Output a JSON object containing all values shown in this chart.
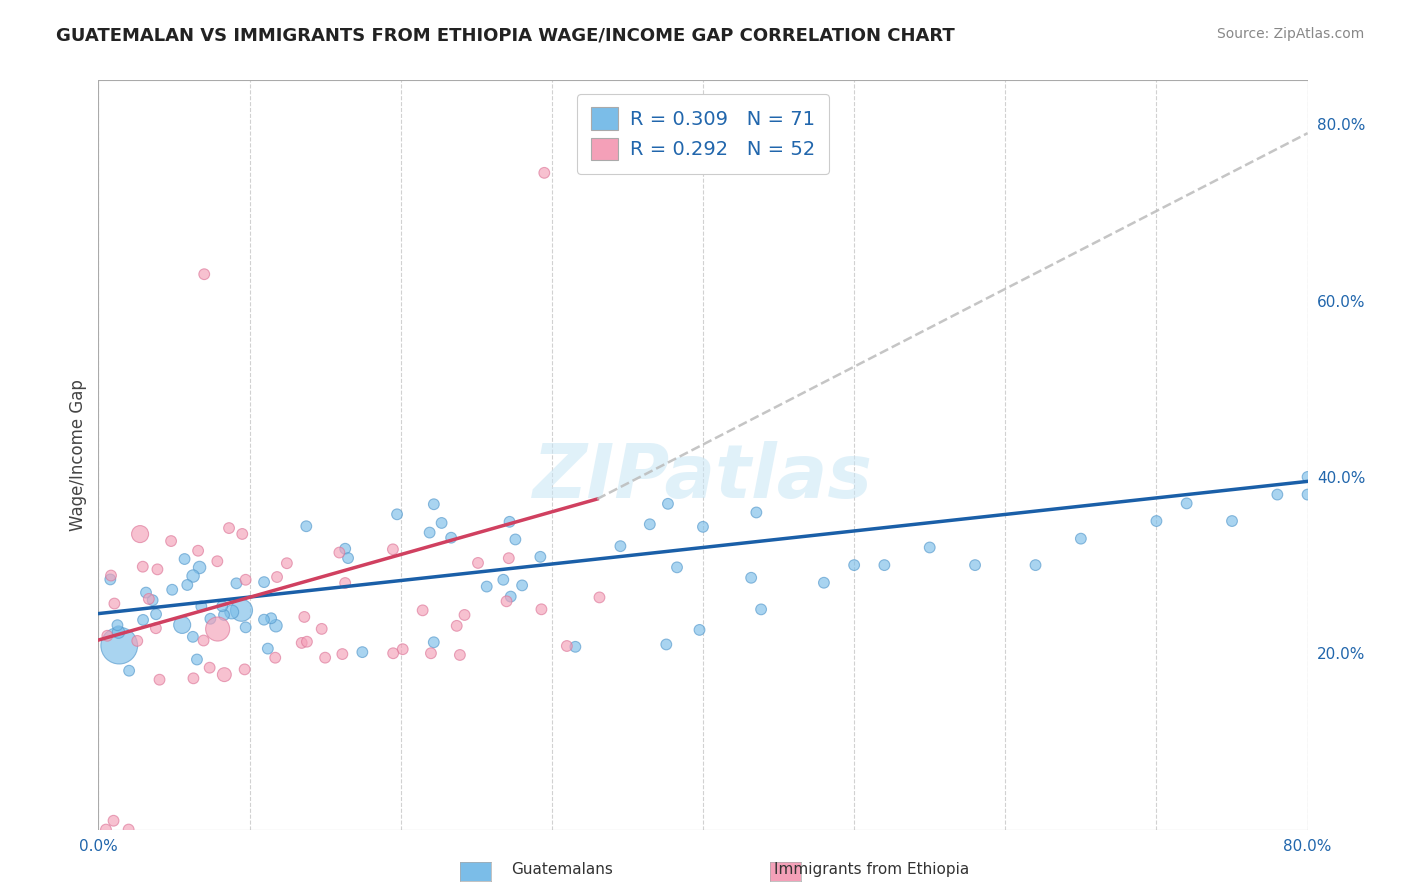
{
  "title": "GUATEMALAN VS IMMIGRANTS FROM ETHIOPIA WAGE/INCOME GAP CORRELATION CHART",
  "source": "Source: ZipAtlas.com",
  "ylabel": "Wage/Income Gap",
  "xlim": [
    0.0,
    0.8
  ],
  "ylim": [
    0.0,
    0.85
  ],
  "blue_color": "#7BBDE8",
  "blue_color_edge": "#5599CC",
  "pink_color": "#F4A0B8",
  "pink_color_edge": "#DD7799",
  "blue_line_color": "#1A5FA8",
  "pink_line_color": "#D04060",
  "dashed_color": "#BBBBBB",
  "legend_R_blue": "0.309",
  "legend_N_blue": "71",
  "legend_R_pink": "0.292",
  "legend_N_pink": "52",
  "legend_label_blue": "Guatemalans",
  "legend_label_pink": "Immigrants from Ethiopia",
  "watermark": "ZIPatlas",
  "title_fontsize": 13,
  "source_fontsize": 10,
  "tick_fontsize": 11,
  "legend_fontsize": 14
}
